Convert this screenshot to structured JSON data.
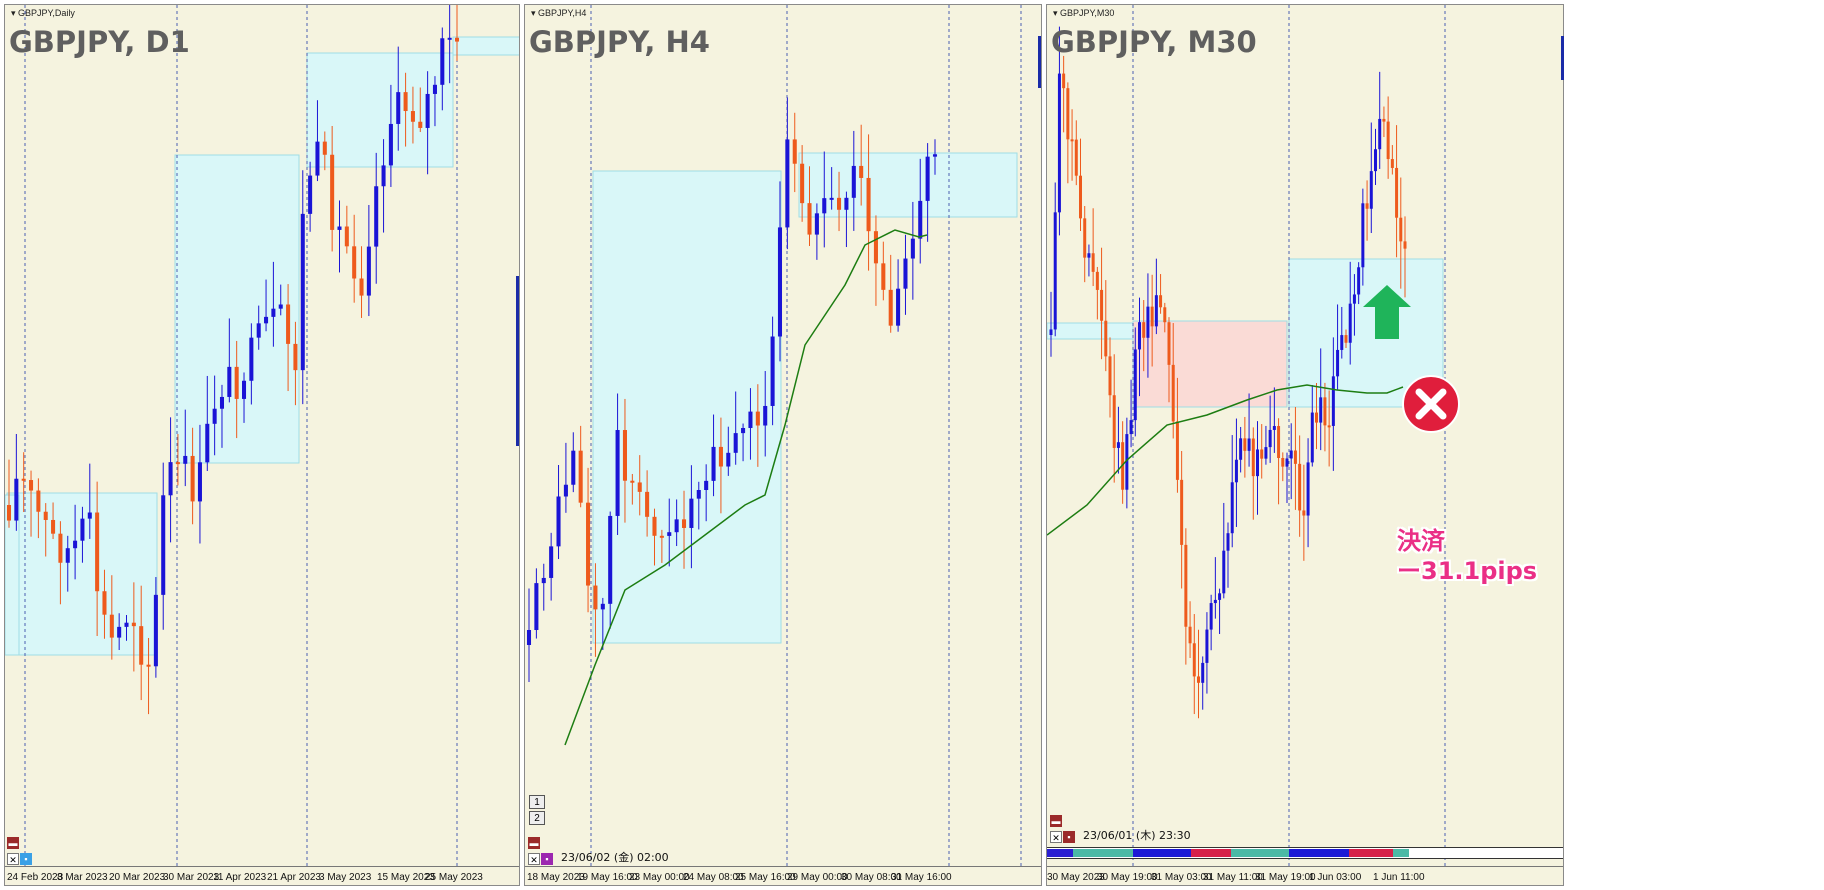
{
  "colors": {
    "background": "#f5f3df",
    "bull_candle": "#1a14d6",
    "bear_candle": "#ee5a1c",
    "zone_blue": "#d9f7f8",
    "zone_pink": "#fadbd6",
    "ma_line": "#1d7d12",
    "exit_badge": "#e01e3c",
    "entry_arrow": "#1fb45a",
    "annotation_text": "#ea2f86"
  },
  "panels": [
    {
      "symbol_label": "GBPJPY,Daily",
      "title": "GBPJPY, D1",
      "x_axis_labels": [
        "24 Feb 2023",
        "8 Mar 2023",
        "20 Mar 2023",
        "30 Mar 2023",
        "11 Apr 2023",
        "21 Apr 2023",
        "3 May 2023",
        "15 May 2023",
        "25 May 2023"
      ],
      "subwindow_buttons": [],
      "time_label": "",
      "chart_data": {
        "type": "candlestick",
        "x_axis": "date",
        "candle_count": 62,
        "trend": "up",
        "moving_average": false
      }
    },
    {
      "symbol_label": "GBPJPY,H4",
      "title": "GBPJPY, H4",
      "x_axis_labels": [
        "18 May 2023",
        "19 May 16:00",
        "23 May 00:00",
        "24 May 08:00",
        "25 May 16:00",
        "29 May 00:00",
        "30 May 08:00",
        "31 May 16:00"
      ],
      "subwindow_buttons": [
        "1",
        "2"
      ],
      "time_label": "23/06/02 (金) 02:00",
      "chart_data": {
        "type": "candlestick",
        "x_axis": "date",
        "candle_count": 56,
        "trend": "up",
        "moving_average": true
      }
    },
    {
      "symbol_label": "GBPJPY,M30",
      "title": "GBPJPY, M30",
      "x_axis_labels": [
        "30 May 2023",
        "30 May 19:00",
        "31 May 03:00",
        "31 May 11:00",
        "31 May 19:00",
        "1 Jun 03:00",
        "1 Jun 11:00"
      ],
      "subwindow_buttons": [],
      "time_label": "23/06/01 (木) 23:30",
      "annotation": {
        "line1": "決済",
        "line2": "ー31.1pips"
      },
      "chart_data": {
        "type": "candlestick",
        "x_axis": "time",
        "candle_count": 85,
        "trend": "range-then-up",
        "moving_average": true
      }
    }
  ]
}
